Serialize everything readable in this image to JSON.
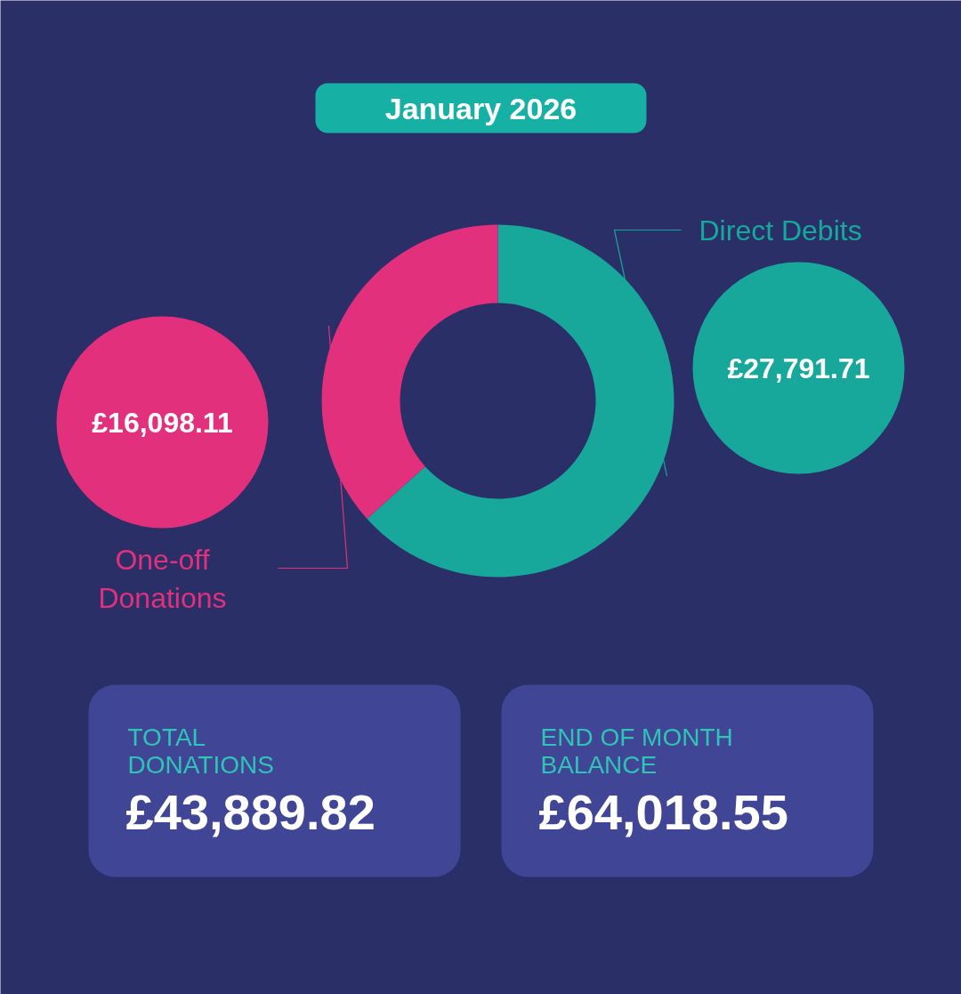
{
  "chart_data": {
    "type": "donut",
    "title": "January 2026",
    "categories": [
      "Direct Debits",
      "One-off Donations"
    ],
    "values": [
      27791.71,
      16098.11
    ],
    "colors": [
      "#17a89b",
      "#e3307c"
    ],
    "value_labels": [
      "£27,791.71",
      "£16,098.11"
    ],
    "annotations": [
      "TOTAL DONATIONS",
      "£43,889.82",
      "END OF MONTH BALANCE",
      "£64,018.55"
    ]
  }
}
